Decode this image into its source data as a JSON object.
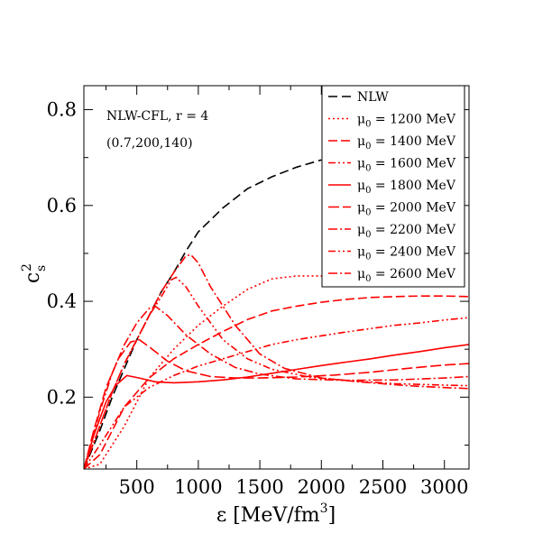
{
  "chart_data": {
    "type": "line",
    "title": "",
    "xlabel": "ε [MeV/fm",
    "xlabel_sup": "3",
    "xlabel_tail": "]",
    "ylabel": "c",
    "ylabel_sup": "2",
    "ylabel_sub": "s",
    "xlim": [
      70,
      3200
    ],
    "ylim": [
      0.05,
      0.85
    ],
    "x_ticks": [
      500,
      1000,
      1500,
      2000,
      2500,
      3000
    ],
    "x_tick_labels": [
      "500",
      "1000",
      "1500",
      "2000",
      "2500",
      "3000"
    ],
    "y_ticks": [
      0.2,
      0.4,
      0.6,
      0.8
    ],
    "y_tick_labels": [
      "0.2",
      "0.4",
      "0.6",
      "0.8"
    ],
    "grid": false,
    "legend_position": "top-right",
    "annotations": [
      "NLW-CFL, r = 4",
      "(0.7,200,140)"
    ],
    "series": [
      {
        "name": "NLW",
        "mu_label": "",
        "color": "#000000",
        "dash": "10,5",
        "points": [
          [
            70,
            0.05
          ],
          [
            200,
            0.13
          ],
          [
            300,
            0.2
          ],
          [
            400,
            0.26
          ],
          [
            500,
            0.32
          ],
          [
            600,
            0.37
          ],
          [
            700,
            0.42
          ],
          [
            800,
            0.46
          ],
          [
            900,
            0.505
          ],
          [
            1000,
            0.545
          ],
          [
            1200,
            0.595
          ],
          [
            1400,
            0.635
          ],
          [
            1600,
            0.66
          ],
          [
            1800,
            0.68
          ],
          [
            2000,
            0.695
          ]
        ]
      },
      {
        "name": "",
        "mu_label": "1200 MeV",
        "color": "#ff0000",
        "dash": "2,3",
        "points": [
          [
            70,
            0.05
          ],
          [
            200,
            0.06
          ],
          [
            400,
            0.14
          ],
          [
            600,
            0.24
          ],
          [
            800,
            0.3
          ],
          [
            1000,
            0.35
          ],
          [
            1200,
            0.39
          ],
          [
            1400,
            0.425
          ],
          [
            1600,
            0.447
          ],
          [
            1800,
            0.453
          ],
          [
            2000,
            0.453
          ],
          [
            2200,
            0.452
          ],
          [
            2400,
            0.452
          ]
        ]
      },
      {
        "name": "",
        "mu_label": "1400 MeV",
        "color": "#ff0000",
        "dash": "10,4",
        "points": [
          [
            70,
            0.05
          ],
          [
            200,
            0.08
          ],
          [
            400,
            0.18
          ],
          [
            600,
            0.24
          ],
          [
            800,
            0.28
          ],
          [
            1000,
            0.31
          ],
          [
            1200,
            0.337
          ],
          [
            1400,
            0.362
          ],
          [
            1600,
            0.38
          ],
          [
            1800,
            0.39
          ],
          [
            2000,
            0.398
          ],
          [
            2200,
            0.404
          ],
          [
            2400,
            0.408
          ],
          [
            2600,
            0.41
          ],
          [
            2800,
            0.411
          ],
          [
            3000,
            0.411
          ],
          [
            3200,
            0.41
          ]
        ]
      },
      {
        "name": "",
        "mu_label": "1600 MeV",
        "color": "#ff0000",
        "dash": "8,3,2,3,2,3",
        "points": [
          [
            70,
            0.05
          ],
          [
            200,
            0.1
          ],
          [
            400,
            0.18
          ],
          [
            600,
            0.22
          ],
          [
            800,
            0.245
          ],
          [
            1000,
            0.265
          ],
          [
            1200,
            0.28
          ],
          [
            1400,
            0.295
          ],
          [
            1600,
            0.31
          ],
          [
            1800,
            0.32
          ],
          [
            2000,
            0.328
          ],
          [
            2200,
            0.336
          ],
          [
            2400,
            0.343
          ],
          [
            2600,
            0.35
          ],
          [
            2800,
            0.355
          ],
          [
            3000,
            0.361
          ],
          [
            3200,
            0.366
          ]
        ]
      },
      {
        "name": "",
        "mu_label": "1800 MeV",
        "color": "#ff0000",
        "dash": "",
        "points": [
          [
            70,
            0.05
          ],
          [
            150,
            0.12
          ],
          [
            250,
            0.19
          ],
          [
            330,
            0.225
          ],
          [
            420,
            0.245
          ],
          [
            520,
            0.24
          ],
          [
            650,
            0.232
          ],
          [
            800,
            0.23
          ],
          [
            1000,
            0.232
          ],
          [
            1200,
            0.236
          ],
          [
            1400,
            0.242
          ],
          [
            1600,
            0.25
          ],
          [
            1800,
            0.258
          ],
          [
            2000,
            0.266
          ],
          [
            2200,
            0.273
          ],
          [
            2400,
            0.28
          ],
          [
            2600,
            0.288
          ],
          [
            2800,
            0.295
          ],
          [
            3000,
            0.303
          ],
          [
            3200,
            0.31
          ]
        ]
      },
      {
        "name": "",
        "mu_label": "2000 MeV",
        "color": "#ff0000",
        "dash": "12,4",
        "points": [
          [
            70,
            0.05
          ],
          [
            150,
            0.13
          ],
          [
            250,
            0.22
          ],
          [
            350,
            0.28
          ],
          [
            450,
            0.315
          ],
          [
            520,
            0.32
          ],
          [
            600,
            0.305
          ],
          [
            750,
            0.275
          ],
          [
            900,
            0.255
          ],
          [
            1100,
            0.243
          ],
          [
            1300,
            0.24
          ],
          [
            1500,
            0.24
          ],
          [
            1800,
            0.242
          ],
          [
            2100,
            0.246
          ],
          [
            2400,
            0.252
          ],
          [
            2700,
            0.26
          ],
          [
            3000,
            0.267
          ],
          [
            3200,
            0.27
          ]
        ]
      },
      {
        "name": "",
        "mu_label": "2200 MeV",
        "color": "#ff0000",
        "dash": "10,3,2,3",
        "points": [
          [
            70,
            0.05
          ],
          [
            200,
            0.17
          ],
          [
            300,
            0.25
          ],
          [
            400,
            0.31
          ],
          [
            500,
            0.355
          ],
          [
            600,
            0.385
          ],
          [
            650,
            0.39
          ],
          [
            750,
            0.37
          ],
          [
            900,
            0.33
          ],
          [
            1100,
            0.29
          ],
          [
            1300,
            0.262
          ],
          [
            1500,
            0.248
          ],
          [
            1800,
            0.238
          ],
          [
            2200,
            0.235
          ],
          [
            2600,
            0.236
          ],
          [
            3000,
            0.24
          ],
          [
            3200,
            0.243
          ]
        ]
      },
      {
        "name": "",
        "mu_label": "2400 MeV",
        "color": "#ff0000",
        "dash": "8,3,2,3,2,3",
        "points": [
          [
            70,
            0.05
          ],
          [
            200,
            0.14
          ],
          [
            300,
            0.21
          ],
          [
            400,
            0.27
          ],
          [
            500,
            0.32
          ],
          [
            600,
            0.37
          ],
          [
            700,
            0.41
          ],
          [
            780,
            0.445
          ],
          [
            820,
            0.45
          ],
          [
            900,
            0.43
          ],
          [
            1000,
            0.39
          ],
          [
            1200,
            0.32
          ],
          [
            1400,
            0.28
          ],
          [
            1600,
            0.258
          ],
          [
            1900,
            0.242
          ],
          [
            2200,
            0.235
          ],
          [
            2600,
            0.228
          ],
          [
            3000,
            0.225
          ],
          [
            3200,
            0.224
          ]
        ]
      },
      {
        "name": "",
        "mu_label": "2600 MeV",
        "color": "#ff0000",
        "dash": "10,3,2,3",
        "points": [
          [
            70,
            0.05
          ],
          [
            200,
            0.14
          ],
          [
            300,
            0.21
          ],
          [
            400,
            0.27
          ],
          [
            500,
            0.32
          ],
          [
            600,
            0.37
          ],
          [
            700,
            0.42
          ],
          [
            800,
            0.46
          ],
          [
            900,
            0.495
          ],
          [
            940,
            0.497
          ],
          [
            1000,
            0.48
          ],
          [
            1100,
            0.43
          ],
          [
            1300,
            0.35
          ],
          [
            1500,
            0.29
          ],
          [
            1700,
            0.26
          ],
          [
            2000,
            0.24
          ],
          [
            2300,
            0.232
          ],
          [
            2700,
            0.224
          ],
          [
            3000,
            0.22
          ],
          [
            3200,
            0.218
          ]
        ]
      }
    ]
  }
}
